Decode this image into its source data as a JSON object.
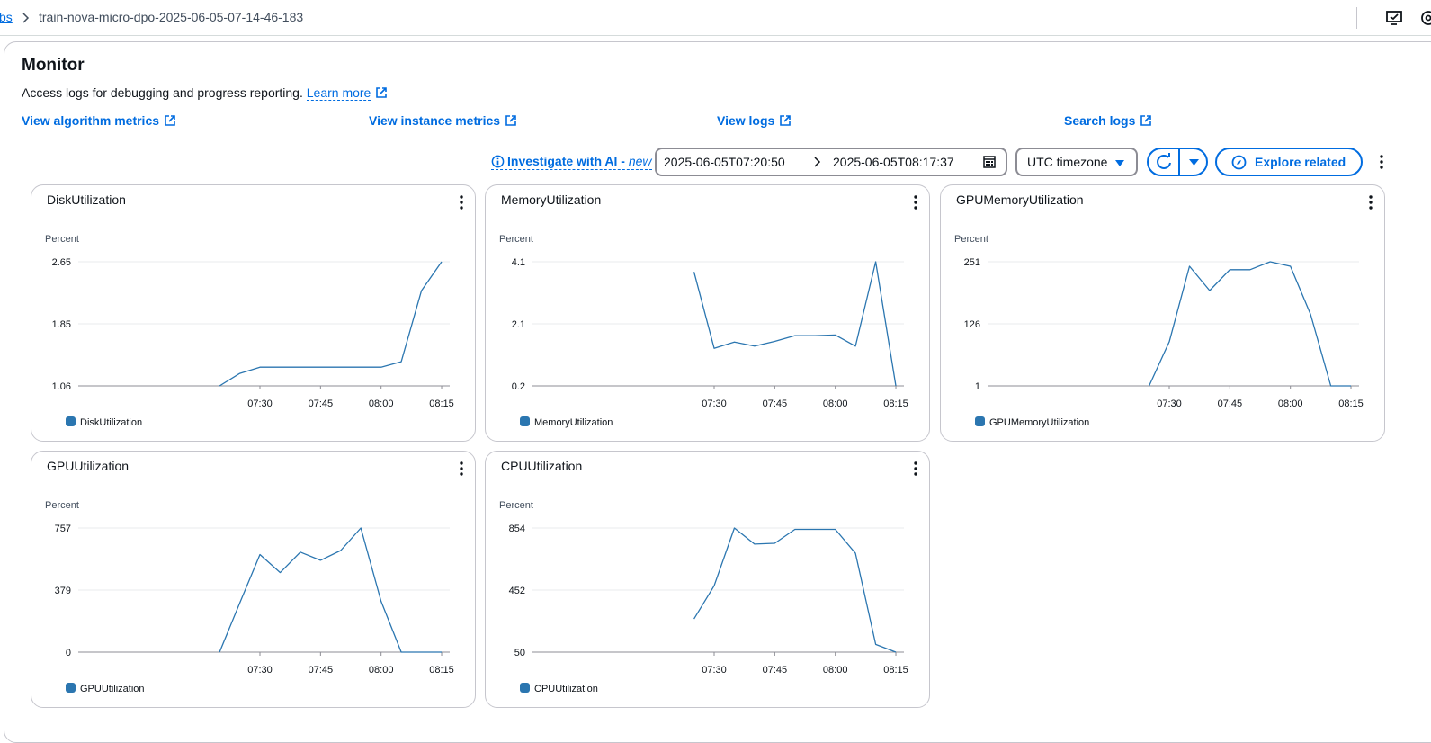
{
  "breadcrumb": {
    "parent_link": "bs",
    "current": "train-nova-micro-dpo-2025-06-05-07-14-46-183"
  },
  "header": {
    "title": "Monitor",
    "description": "Access logs for debugging and progress reporting.",
    "learn_more": "Learn more"
  },
  "links": {
    "algorithm_metrics": "View algorithm metrics",
    "instance_metrics": "View instance metrics",
    "logs": "View logs",
    "search_logs": "Search logs"
  },
  "toolbar": {
    "investigate": "Investigate with AI -",
    "investigate_new": "new",
    "date_start": "2025-06-05T07:20:50",
    "date_end": "2025-06-05T08:17:37",
    "timezone": "UTC timezone",
    "explore": "Explore related"
  },
  "colors": {
    "accent": "#006ce0",
    "series": "#2b76b0",
    "gridline": "#e9ebed"
  },
  "icons": [
    "external-link-icon",
    "info-icon",
    "calendar-icon",
    "refresh-icon",
    "caret-down-icon",
    "compass-icon",
    "kebab-icon"
  ],
  "chart_data": [
    {
      "id": "disk",
      "type": "line",
      "title": "DiskUtilization",
      "ylabel": "Percent",
      "yticks": [
        "1.06",
        "1.85",
        "2.65"
      ],
      "ylim": [
        1.06,
        2.65
      ],
      "xlim": [
        1305,
        1397
      ],
      "xticks": [
        {
          "label": "07:30",
          "value": 1350
        },
        {
          "label": "07:45",
          "value": 1365
        },
        {
          "label": "08:00",
          "value": 1380
        },
        {
          "label": "08:15",
          "value": 1395
        }
      ],
      "series": [
        {
          "name": "DiskUtilization",
          "x": [
            1340,
            1345,
            1350,
            1355,
            1360,
            1365,
            1370,
            1375,
            1380,
            1385,
            1390,
            1395
          ],
          "values": [
            1.06,
            1.22,
            1.3,
            1.3,
            1.3,
            1.3,
            1.3,
            1.3,
            1.3,
            1.37,
            2.28,
            2.65
          ]
        }
      ]
    },
    {
      "id": "memory",
      "type": "line",
      "title": "MemoryUtilization",
      "ylabel": "Percent",
      "yticks": [
        "0.2",
        "2.1",
        "4.1"
      ],
      "ylim": [
        0.2,
        4.1
      ],
      "xlim": [
        1305,
        1397
      ],
      "xticks": [
        {
          "label": "07:30",
          "value": 1350
        },
        {
          "label": "07:45",
          "value": 1365
        },
        {
          "label": "08:00",
          "value": 1380
        },
        {
          "label": "08:15",
          "value": 1395
        }
      ],
      "series": [
        {
          "name": "MemoryUtilization",
          "x": [
            1345,
            1350,
            1355,
            1360,
            1365,
            1370,
            1375,
            1380,
            1385,
            1390,
            1395
          ],
          "values": [
            3.78,
            1.38,
            1.58,
            1.45,
            1.6,
            1.78,
            1.78,
            1.8,
            1.45,
            4.1,
            0.2
          ]
        }
      ]
    },
    {
      "id": "gpumem",
      "type": "line",
      "title": "GPUMemoryUtilization",
      "ylabel": "Percent",
      "yticks": [
        "1",
        "126",
        "251"
      ],
      "ylim": [
        1,
        251
      ],
      "xlim": [
        1305,
        1397
      ],
      "xticks": [
        {
          "label": "07:30",
          "value": 1350
        },
        {
          "label": "07:45",
          "value": 1365
        },
        {
          "label": "08:00",
          "value": 1380
        },
        {
          "label": "08:15",
          "value": 1395
        }
      ],
      "series": [
        {
          "name": "GPUMemoryUtilization",
          "x": [
            1345,
            1350,
            1355,
            1360,
            1365,
            1370,
            1375,
            1380,
            1385,
            1390,
            1395
          ],
          "values": [
            1,
            90,
            242,
            193,
            235,
            235,
            251,
            242,
            145,
            1,
            1
          ]
        }
      ]
    },
    {
      "id": "gpu",
      "type": "line",
      "title": "GPUUtilization",
      "ylabel": "Percent",
      "yticks": [
        "0",
        "379",
        "757"
      ],
      "ylim": [
        0,
        757
      ],
      "xlim": [
        1305,
        1397
      ],
      "xticks": [
        {
          "label": "07:30",
          "value": 1350
        },
        {
          "label": "07:45",
          "value": 1365
        },
        {
          "label": "08:00",
          "value": 1380
        },
        {
          "label": "08:15",
          "value": 1395
        }
      ],
      "series": [
        {
          "name": "GPUUtilization",
          "x": [
            1340,
            1345,
            1350,
            1355,
            1360,
            1365,
            1370,
            1375,
            1380,
            1385,
            1390,
            1395
          ],
          "values": [
            0,
            300,
            595,
            485,
            610,
            560,
            620,
            757,
            310,
            0,
            0,
            0
          ]
        }
      ]
    },
    {
      "id": "cpu",
      "type": "line",
      "title": "CPUUtilization",
      "ylabel": "Percent",
      "yticks": [
        "50",
        "452",
        "854"
      ],
      "ylim": [
        50,
        854
      ],
      "xlim": [
        1305,
        1397
      ],
      "xticks": [
        {
          "label": "07:30",
          "value": 1350
        },
        {
          "label": "07:45",
          "value": 1365
        },
        {
          "label": "08:00",
          "value": 1380
        },
        {
          "label": "08:15",
          "value": 1395
        }
      ],
      "series": [
        {
          "name": "CPUUtilization",
          "x": [
            1345,
            1350,
            1355,
            1360,
            1365,
            1370,
            1375,
            1380,
            1385,
            1390,
            1395
          ],
          "values": [
            265,
            480,
            854,
            750,
            755,
            845,
            845,
            845,
            690,
            100,
            50
          ]
        }
      ]
    }
  ]
}
